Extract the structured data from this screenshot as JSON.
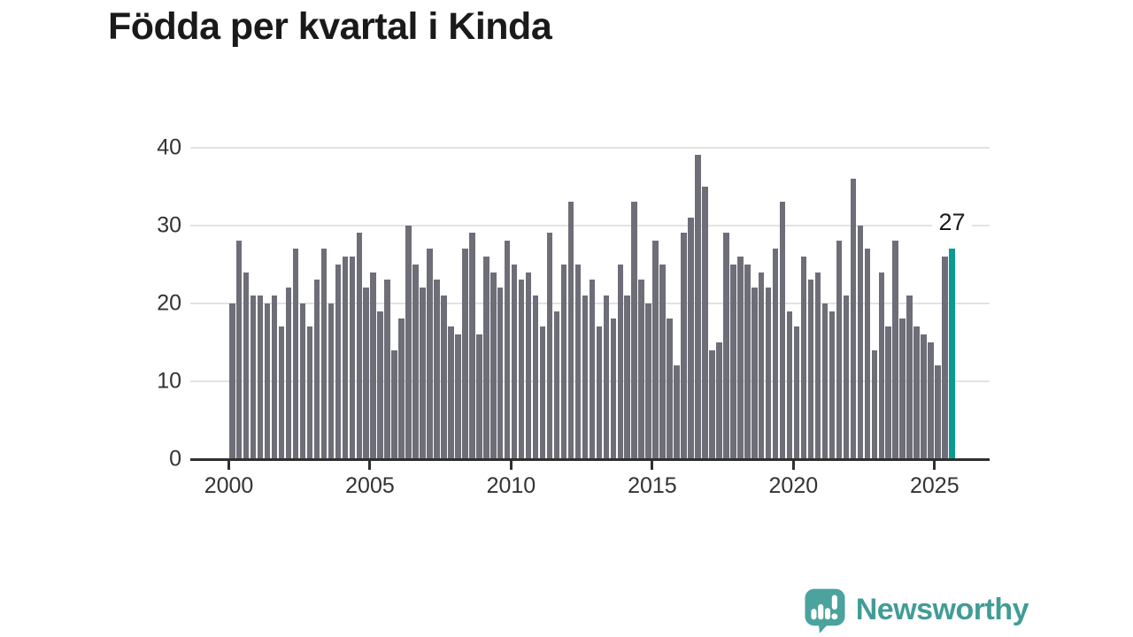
{
  "title": "Födda per kvartal i Kinda",
  "annotation": {
    "label": "27"
  },
  "logo": {
    "text": "Newsworthy"
  },
  "colors": {
    "bar": "#6e6e78",
    "highlight": "#0a9a93",
    "grid": "#e3e3e3",
    "axis": "#2f2f2f",
    "tick_text": "#333333",
    "title_text": "#1a1a1a",
    "logo_teal": "#429c96"
  },
  "chart_data": {
    "type": "bar",
    "title": "Födda per kvartal i Kinda",
    "x_start": "2000 Q1",
    "x_end": "2025 Q3",
    "x_tick_labels": [
      "2000",
      "2005",
      "2010",
      "2015",
      "2020",
      "2025"
    ],
    "y_tick_labels": [
      "0",
      "10",
      "20",
      "30",
      "40"
    ],
    "y_gridlines": [
      10,
      20,
      30,
      40
    ],
    "ylim": [
      0,
      42
    ],
    "grid": true,
    "legend": false,
    "series": [
      {
        "name": "Födda per kvartal",
        "values": [
          20,
          28,
          24,
          21,
          21,
          20,
          21,
          17,
          22,
          27,
          20,
          17,
          23,
          27,
          20,
          25,
          26,
          26,
          29,
          22,
          24,
          19,
          23,
          14,
          18,
          30,
          25,
          22,
          27,
          23,
          21,
          17,
          16,
          27,
          29,
          16,
          26,
          24,
          22,
          28,
          25,
          23,
          24,
          21,
          17,
          29,
          19,
          25,
          33,
          25,
          21,
          23,
          17,
          21,
          18,
          25,
          21,
          33,
          23,
          20,
          28,
          25,
          18,
          12,
          29,
          31,
          39,
          35,
          14,
          15,
          29,
          25,
          26,
          25,
          22,
          24,
          22,
          27,
          33,
          19,
          17,
          26,
          23,
          24,
          20,
          19,
          28,
          21,
          36,
          30,
          27,
          14,
          24,
          17,
          28,
          18,
          21,
          17,
          16,
          15,
          12,
          26,
          27
        ]
      }
    ],
    "highlight_index": 102,
    "highlight_quarter": "2025 Q3",
    "highlight_value": 27
  }
}
